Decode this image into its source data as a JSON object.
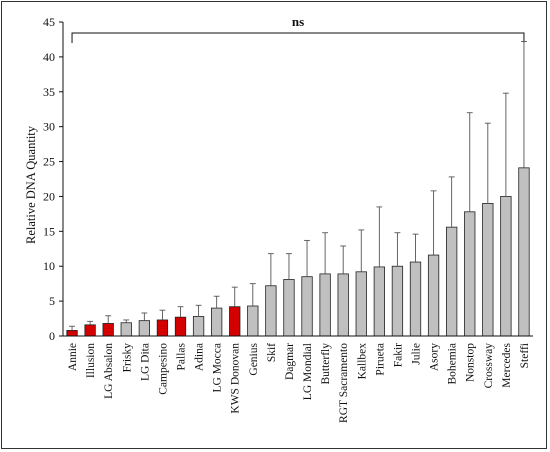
{
  "chart_data": {
    "type": "bar",
    "ylabel": "Relative DNA Quantity",
    "ylim": [
      0,
      45
    ],
    "yticks": [
      0,
      5,
      10,
      15,
      20,
      25,
      30,
      35,
      40,
      45
    ],
    "significance_label": "ns",
    "grid": false,
    "categories": [
      "Annie",
      "Illusion",
      "LG Absalon",
      "Frisky",
      "LG Dita",
      "Campesino",
      "Pallas",
      "Adina",
      "LG Mocca",
      "KWS Donovan",
      "Genius",
      "Skif",
      "Dagmar",
      "LG Mondial",
      "Butterfly",
      "RGT Sacramento",
      "Kallbex",
      "Pirueta",
      "Fakir",
      "Julie",
      "Asory",
      "Bohemia",
      "Nonstop",
      "Crossway",
      "Mercedes",
      "Steffi"
    ],
    "values": [
      0.8,
      1.6,
      1.8,
      1.9,
      2.2,
      2.3,
      2.7,
      2.8,
      4.0,
      4.2,
      4.3,
      7.2,
      8.1,
      8.5,
      8.9,
      8.9,
      9.2,
      9.9,
      10.0,
      10.6,
      11.6,
      15.6,
      17.8,
      19.0,
      20.0,
      24.1
    ],
    "errors": [
      0.6,
      0.5,
      1.1,
      0.4,
      1.1,
      1.4,
      1.5,
      1.6,
      1.7,
      2.8,
      3.2,
      4.6,
      3.7,
      5.2,
      5.9,
      4.0,
      6.0,
      8.6,
      4.8,
      4.0,
      9.2,
      7.2,
      14.2,
      11.5,
      14.8,
      18.1
    ],
    "bar_colors": [
      "#d40000",
      "#d40000",
      "#d40000",
      "#c0c0c0",
      "#c0c0c0",
      "#d40000",
      "#d40000",
      "#c0c0c0",
      "#c0c0c0",
      "#d40000",
      "#c0c0c0",
      "#c0c0c0",
      "#c0c0c0",
      "#c0c0c0",
      "#c0c0c0",
      "#c0c0c0",
      "#c0c0c0",
      "#c0c0c0",
      "#c0c0c0",
      "#c0c0c0",
      "#c0c0c0",
      "#c0c0c0",
      "#c0c0c0",
      "#c0c0c0",
      "#c0c0c0",
      "#c0c0c0"
    ]
  }
}
